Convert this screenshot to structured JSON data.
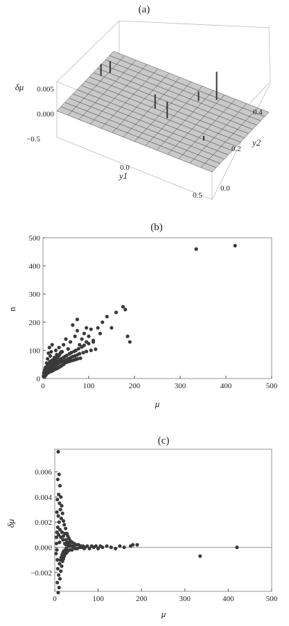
{
  "figure": {
    "panels": [
      {
        "label": "(a)"
      },
      {
        "label": "(b)"
      },
      {
        "label": "(c)"
      }
    ]
  },
  "chart_data": [
    {
      "panel": "(a)",
      "type": "surface",
      "zlabel": "δμ",
      "xlabel": "y1",
      "ylabel": "y2",
      "z_ticks": [
        "0.005",
        "0.000"
      ],
      "x_ticks": [
        "−0.5",
        "0.0",
        "0.5"
      ],
      "y_ticks": [
        "0.0",
        "0.2",
        "0.4"
      ],
      "xlim": [
        -0.5,
        0.5
      ],
      "ylim": [
        0.0,
        0.5
      ],
      "zlim": [
        -0.001,
        0.007
      ],
      "grid": true,
      "base_value": 0.0,
      "features": [
        {
          "y1": -0.45,
          "y2": 0.32,
          "dz": 0.0025
        },
        {
          "y1": -0.42,
          "y2": 0.36,
          "dz": 0.0025
        },
        {
          "y1": -0.05,
          "y2": 0.25,
          "dz": 0.003
        },
        {
          "y1": 0.05,
          "y2": 0.22,
          "dz": 0.0035
        },
        {
          "y1": 0.2,
          "y2": 0.45,
          "dz": 0.006
        },
        {
          "y1": 0.12,
          "y2": 0.4,
          "dz": 0.002
        },
        {
          "y1": 0.3,
          "y2": 0.2,
          "dz": -0.001
        }
      ]
    },
    {
      "panel": "(b)",
      "type": "scatter",
      "xlabel": "μ",
      "ylabel": "n",
      "xlim": [
        0,
        500
      ],
      "ylim": [
        0,
        500
      ],
      "x_ticks": [
        0,
        100,
        200,
        300,
        400,
        500
      ],
      "y_ticks": [
        0,
        100,
        200,
        300,
        400,
        500
      ],
      "grid": false,
      "points": [
        [
          1,
          8
        ],
        [
          2,
          12
        ],
        [
          3,
          15
        ],
        [
          4,
          18
        ],
        [
          5,
          20
        ],
        [
          6,
          22
        ],
        [
          7,
          25
        ],
        [
          8,
          26
        ],
        [
          9,
          28
        ],
        [
          10,
          30
        ],
        [
          11,
          32
        ],
        [
          12,
          35
        ],
        [
          13,
          30
        ],
        [
          14,
          38
        ],
        [
          15,
          40
        ],
        [
          16,
          36
        ],
        [
          17,
          42
        ],
        [
          18,
          33
        ],
        [
          19,
          45
        ],
        [
          20,
          40
        ],
        [
          21,
          48
        ],
        [
          22,
          38
        ],
        [
          23,
          50
        ],
        [
          24,
          44
        ],
        [
          25,
          52
        ],
        [
          26,
          40
        ],
        [
          27,
          55
        ],
        [
          28,
          46
        ],
        [
          29,
          58
        ],
        [
          30,
          50
        ],
        [
          32,
          62
        ],
        [
          34,
          54
        ],
        [
          36,
          66
        ],
        [
          38,
          58
        ],
        [
          40,
          70
        ],
        [
          42,
          60
        ],
        [
          44,
          74
        ],
        [
          46,
          62
        ],
        [
          48,
          78
        ],
        [
          50,
          66
        ],
        [
          52,
          82
        ],
        [
          55,
          70
        ],
        [
          58,
          88
        ],
        [
          60,
          74
        ],
        [
          62,
          92
        ],
        [
          65,
          78
        ],
        [
          68,
          96
        ],
        [
          70,
          80
        ],
        [
          72,
          100
        ],
        [
          75,
          84
        ],
        [
          78,
          106
        ],
        [
          80,
          88
        ],
        [
          85,
          112
        ],
        [
          88,
          92
        ],
        [
          90,
          118
        ],
        [
          95,
          96
        ],
        [
          100,
          124
        ],
        [
          105,
          100
        ],
        [
          110,
          130
        ],
        [
          115,
          104
        ],
        [
          6,
          40
        ],
        [
          8,
          55
        ],
        [
          10,
          70
        ],
        [
          12,
          90
        ],
        [
          14,
          110
        ],
        [
          16,
          80
        ],
        [
          18,
          95
        ],
        [
          20,
          120
        ],
        [
          22,
          60
        ],
        [
          25,
          75
        ],
        [
          28,
          100
        ],
        [
          30,
          85
        ],
        [
          35,
          110
        ],
        [
          40,
          95
        ],
        [
          45,
          120
        ],
        [
          50,
          140
        ],
        [
          55,
          105
        ],
        [
          60,
          130
        ],
        [
          70,
          150
        ],
        [
          75,
          170
        ],
        [
          80,
          120
        ],
        [
          85,
          140
        ],
        [
          90,
          160
        ],
        [
          95,
          130
        ],
        [
          100,
          150
        ],
        [
          105,
          175
        ],
        [
          110,
          135
        ],
        [
          120,
          180
        ],
        [
          125,
          160
        ],
        [
          130,
          200
        ],
        [
          140,
          220
        ],
        [
          150,
          180
        ],
        [
          160,
          235
        ],
        [
          175,
          255
        ],
        [
          180,
          245
        ],
        [
          185,
          150
        ],
        [
          190,
          130
        ],
        [
          95,
          180
        ],
        [
          75,
          210
        ],
        [
          65,
          190
        ],
        [
          3,
          5
        ],
        [
          5,
          10
        ],
        [
          7,
          14
        ],
        [
          9,
          18
        ],
        [
          11,
          20
        ],
        [
          13,
          22
        ],
        [
          15,
          24
        ],
        [
          17,
          25
        ],
        [
          19,
          26
        ],
        [
          21,
          28
        ],
        [
          23,
          30
        ],
        [
          25,
          32
        ],
        [
          27,
          33
        ],
        [
          29,
          35
        ],
        [
          31,
          36
        ],
        [
          33,
          38
        ],
        [
          35,
          40
        ],
        [
          37,
          42
        ],
        [
          39,
          44
        ],
        [
          41,
          46
        ],
        [
          15,
          60
        ],
        [
          20,
          65
        ],
        [
          24,
          58
        ],
        [
          26,
          68
        ],
        [
          28,
          72
        ],
        [
          32,
          76
        ],
        [
          34,
          80
        ],
        [
          36,
          84
        ],
        [
          38,
          90
        ],
        [
          42,
          95
        ],
        [
          4,
          30
        ],
        [
          6,
          32
        ],
        [
          8,
          34
        ],
        [
          10,
          45
        ],
        [
          12,
          50
        ],
        [
          14,
          52
        ],
        [
          16,
          55
        ],
        [
          18,
          60
        ],
        [
          20,
          62
        ],
        [
          22,
          66
        ],
        [
          45,
          50
        ],
        [
          48,
          55
        ],
        [
          52,
          58
        ],
        [
          56,
          60
        ],
        [
          60,
          62
        ],
        [
          64,
          64
        ],
        [
          68,
          66
        ],
        [
          72,
          68
        ],
        [
          76,
          70
        ],
        [
          82,
          72
        ],
        [
          2,
          20
        ],
        [
          3,
          25
        ],
        [
          4,
          28
        ],
        [
          5,
          35
        ],
        [
          7,
          38
        ],
        [
          9,
          40
        ],
        [
          11,
          42
        ],
        [
          13,
          44
        ],
        [
          15,
          48
        ],
        [
          17,
          50
        ],
        [
          335,
          460
        ],
        [
          420,
          472
        ]
      ]
    },
    {
      "panel": "(c)",
      "type": "scatter",
      "xlabel": "μ",
      "ylabel": "δμ",
      "xlim": [
        0,
        500
      ],
      "ylim": [
        -0.0035,
        0.0078
      ],
      "x_ticks": [
        0,
        100,
        200,
        300,
        400,
        500
      ],
      "y_ticks": [
        "0.006",
        "0.004",
        "0.002",
        "0.000",
        "−0.002"
      ],
      "y_tick_values": [
        0.006,
        0.004,
        0.002,
        0.0,
        -0.002
      ],
      "reference_line": 0.0,
      "grid": false,
      "points": [
        [
          8,
          0.0076
        ],
        [
          10,
          0.0058
        ],
        [
          7,
          0.0054
        ],
        [
          12,
          0.0049
        ],
        [
          9,
          0.0042
        ],
        [
          14,
          0.004
        ],
        [
          6,
          0.0038
        ],
        [
          11,
          0.0035
        ],
        [
          16,
          0.0033
        ],
        [
          13,
          0.003
        ],
        [
          5,
          0.0028
        ],
        [
          18,
          0.0027
        ],
        [
          8,
          0.0025
        ],
        [
          15,
          0.0023
        ],
        [
          20,
          0.0021
        ],
        [
          10,
          0.002
        ],
        [
          22,
          0.0018
        ],
        [
          7,
          0.0016
        ],
        [
          25,
          0.0015
        ],
        [
          12,
          0.0014
        ],
        [
          17,
          0.0012
        ],
        [
          28,
          0.0011
        ],
        [
          9,
          0.001
        ],
        [
          30,
          0.0009
        ],
        [
          14,
          0.0008
        ],
        [
          33,
          0.0007
        ],
        [
          19,
          0.0006
        ],
        [
          36,
          0.0005
        ],
        [
          11,
          0.0004
        ],
        [
          40,
          0.0004
        ],
        [
          23,
          0.0003
        ],
        [
          45,
          0.0003
        ],
        [
          26,
          0.0002
        ],
        [
          50,
          0.0002
        ],
        [
          32,
          0.0001
        ],
        [
          55,
          0.0002
        ],
        [
          38,
          0.0001
        ],
        [
          60,
          0.0001
        ],
        [
          44,
          0.0
        ],
        [
          65,
          0.0001
        ],
        [
          48,
          -0.0001
        ],
        [
          70,
          0.0
        ],
        [
          52,
          -0.0001
        ],
        [
          75,
          0.0001
        ],
        [
          58,
          0.0
        ],
        [
          80,
          -0.0001
        ],
        [
          62,
          0.0
        ],
        [
          85,
          0.0001
        ],
        [
          68,
          -0.0001
        ],
        [
          90,
          0.0
        ],
        [
          95,
          0.0001
        ],
        [
          100,
          -0.0001
        ],
        [
          105,
          0.0001
        ],
        [
          110,
          0.0
        ],
        [
          120,
          0.0001
        ],
        [
          130,
          0.0
        ],
        [
          140,
          -0.0001
        ],
        [
          150,
          0.0001
        ],
        [
          160,
          0.0
        ],
        [
          175,
          0.0001
        ],
        [
          180,
          0.0002
        ],
        [
          190,
          0.0002
        ],
        [
          8,
          -0.0036
        ],
        [
          10,
          -0.0032
        ],
        [
          6,
          -0.0028
        ],
        [
          12,
          -0.0025
        ],
        [
          9,
          -0.0022
        ],
        [
          14,
          -0.0019
        ],
        [
          7,
          -0.0017
        ],
        [
          16,
          -0.0015
        ],
        [
          11,
          -0.0013
        ],
        [
          18,
          -0.0011
        ],
        [
          13,
          -0.001
        ],
        [
          20,
          -0.0009
        ],
        [
          15,
          -0.0008
        ],
        [
          22,
          -0.0007
        ],
        [
          17,
          -0.0006
        ],
        [
          25,
          -0.0005
        ],
        [
          19,
          -0.0004
        ],
        [
          28,
          -0.0004
        ],
        [
          21,
          -0.0003
        ],
        [
          30,
          -0.0003
        ],
        [
          24,
          -0.0002
        ],
        [
          35,
          -0.0002
        ],
        [
          27,
          -0.0001
        ],
        [
          40,
          -0.0002
        ],
        [
          5,
          0.0012
        ],
        [
          6,
          -0.001
        ],
        [
          4,
          0.0008
        ],
        [
          3,
          -0.0005
        ],
        [
          4,
          0.0003
        ],
        [
          5,
          -0.0002
        ],
        [
          20,
          0.0009
        ],
        [
          24,
          0.0011
        ],
        [
          26,
          0.0006
        ],
        [
          29,
          0.0004
        ],
        [
          31,
          0.0002
        ],
        [
          34,
          0.0003
        ],
        [
          37,
          0.0001
        ],
        [
          42,
          0.0001
        ],
        [
          335,
          -0.0007
        ],
        [
          420,
          0.0
        ]
      ]
    }
  ]
}
